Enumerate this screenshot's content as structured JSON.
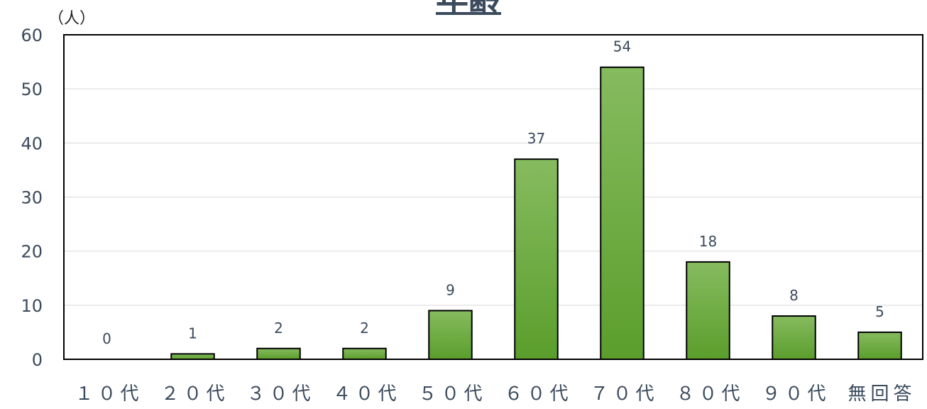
{
  "chart_data": {
    "type": "bar",
    "title": "年齢",
    "unit_label": "（人）",
    "categories": [
      "１０代",
      "２０代",
      "３０代",
      "４０代",
      "５０代",
      "６０代",
      "７０代",
      "８０代",
      "９０代",
      "無回答"
    ],
    "values": [
      0,
      1,
      2,
      2,
      9,
      37,
      54,
      18,
      8,
      5
    ],
    "ylim": [
      0,
      60
    ],
    "yticks": [
      0,
      10,
      20,
      30,
      40,
      50,
      60
    ],
    "grid": true,
    "legend": "none",
    "colors": {
      "bar_top": "#86bb5f",
      "bar_bottom": "#5b9e2c",
      "bar_stroke": "#000000",
      "grid": "#d9d9d9",
      "text": "#3b4a5c"
    }
  }
}
